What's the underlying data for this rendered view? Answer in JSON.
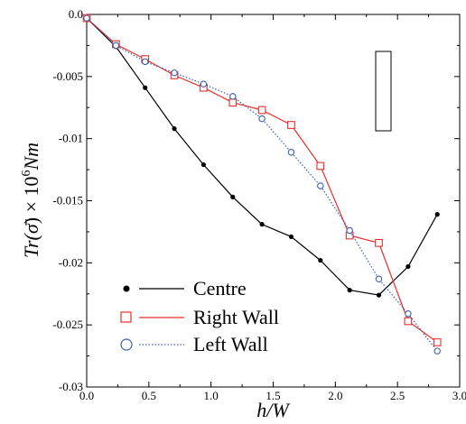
{
  "chart_data": {
    "type": "line",
    "xlabel": "h/W",
    "ylabel": {
      "prefix": "Tr(",
      "symbol": "σ̄",
      "mid": ") × 10",
      "exponent": "6",
      "unit": "Nm"
    },
    "xlim": [
      0.0,
      3.0
    ],
    "ylim": [
      -0.03,
      0.0
    ],
    "xticks": [
      0.0,
      0.5,
      1.0,
      1.5,
      2.0,
      2.5,
      3.0
    ],
    "xtick_labels": [
      "0.0",
      "0.5",
      "1.0",
      "1.5",
      "2.0",
      "2.5",
      "3.0"
    ],
    "yticks": [
      0.0,
      -0.005,
      -0.01,
      -0.015,
      -0.02,
      -0.025,
      -0.03
    ],
    "ytick_labels": [
      "0.0",
      "-0.005",
      "-0.01",
      "-0.015",
      "-0.02",
      "-0.025",
      "-0.03"
    ],
    "grid": false,
    "legend_position": "bottom-left",
    "series": [
      {
        "name": "Centre",
        "color": "#000000",
        "line_style": "solid",
        "marker": "filled-circle",
        "x": [
          0.0,
          0.235,
          0.47,
          0.705,
          0.94,
          1.175,
          1.41,
          1.645,
          1.88,
          2.115,
          2.35,
          2.585,
          2.82
        ],
        "y": [
          -0.0003,
          -0.0026,
          -0.0059,
          -0.0092,
          -0.0121,
          -0.0147,
          -0.0169,
          -0.0179,
          -0.0198,
          -0.0222,
          -0.0226,
          -0.0203,
          -0.0161
        ]
      },
      {
        "name": "Right Wall",
        "color": "#e8302a",
        "line_style": "solid",
        "marker": "open-square",
        "x": [
          0.0,
          0.235,
          0.47,
          0.705,
          0.94,
          1.175,
          1.41,
          1.645,
          1.88,
          2.115,
          2.35,
          2.585,
          2.82
        ],
        "y": [
          -0.0003,
          -0.0024,
          -0.0036,
          -0.0049,
          -0.0059,
          -0.0071,
          -0.0077,
          -0.0089,
          -0.0122,
          -0.0178,
          -0.0184,
          -0.0247,
          -0.0264
        ]
      },
      {
        "name": "Left Wall",
        "color": "#3a5fb0",
        "line_style": "dotted",
        "marker": "open-circle",
        "x": [
          0.0,
          0.235,
          0.47,
          0.705,
          0.94,
          1.175,
          1.41,
          1.645,
          1.88,
          2.115,
          2.35,
          2.585,
          2.82
        ],
        "y": [
          -0.0003,
          -0.0025,
          -0.0038,
          -0.0047,
          -0.0056,
          -0.0066,
          -0.0084,
          -0.0111,
          -0.0138,
          -0.0174,
          -0.0213,
          -0.0241,
          -0.0271
        ]
      }
    ],
    "inset_shape": "rectangle"
  }
}
